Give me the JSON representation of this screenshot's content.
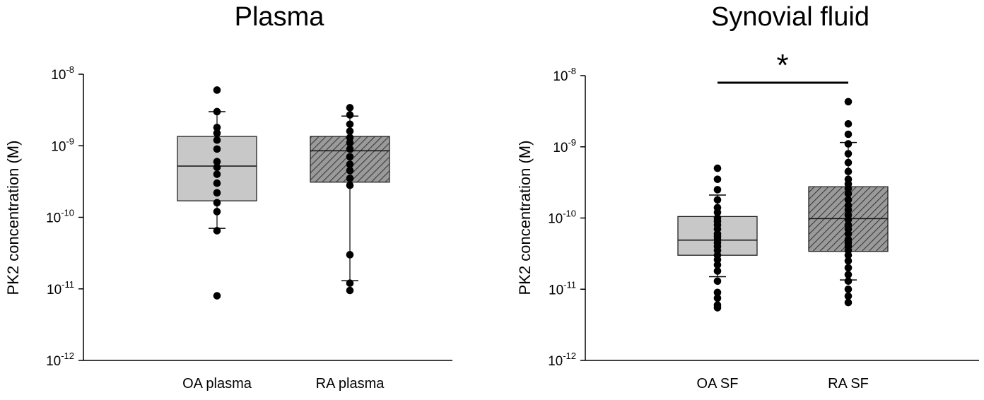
{
  "chart_data": [
    {
      "type": "box",
      "title": "Plasma",
      "ylabel": "PK2 concentration (M)",
      "yscale": "log",
      "ylim": [
        1e-12,
        1e-08
      ],
      "yticks": [
        {
          "exp": "-8",
          "value": 1e-08
        },
        {
          "exp": "-9",
          "value": 1e-09
        },
        {
          "exp": "-10",
          "value": 1e-10
        },
        {
          "exp": "-11",
          "value": 1e-11
        },
        {
          "exp": "-12",
          "value": 1e-12
        }
      ],
      "categories": [
        "OA plasma",
        "RA plasma"
      ],
      "boxes": [
        {
          "name": "OA plasma",
          "fill": "#c8c8c8",
          "hatched": false,
          "whisker_low": 7e-11,
          "q1": 1.7e-10,
          "median": 5.2e-10,
          "q3": 1.35e-09,
          "whisker_high": 3e-09,
          "points": [
            6e-09,
            3e-09,
            1.8e-09,
            1.5e-09,
            1.2e-09,
            9e-10,
            6e-10,
            5e-10,
            4e-10,
            3e-10,
            2.2e-10,
            1.6e-10,
            1.2e-10,
            6.5e-11,
            8e-12
          ]
        },
        {
          "name": "RA plasma",
          "fill": "#8c8c8c",
          "hatched": true,
          "whisker_low": 1.3e-11,
          "q1": 3.1e-10,
          "median": 8.5e-10,
          "q3": 1.35e-09,
          "whisker_high": 2.6e-09,
          "points": [
            3.4e-09,
            2.7e-09,
            2e-09,
            1.6e-09,
            1.3e-09,
            1.1e-09,
            9e-10,
            7e-10,
            5.5e-10,
            4.5e-10,
            3.5e-10,
            2.8e-10,
            3e-11,
            1.2e-11,
            9.5e-12
          ]
        }
      ]
    },
    {
      "type": "box",
      "title": "Synovial fluid",
      "ylabel": "PK2 concentration (M)",
      "yscale": "log",
      "ylim": [
        1e-12,
        1e-08
      ],
      "yticks": [
        {
          "exp": "-8",
          "value": 1e-08
        },
        {
          "exp": "-9",
          "value": 1e-09
        },
        {
          "exp": "-10",
          "value": 1e-10
        },
        {
          "exp": "-11",
          "value": 1e-11
        },
        {
          "exp": "-12",
          "value": 1e-12
        }
      ],
      "categories": [
        "OA SF",
        "RA SF"
      ],
      "significance": {
        "label": "*",
        "between": [
          "OA SF",
          "RA SF"
        ]
      },
      "boxes": [
        {
          "name": "OA SF",
          "fill": "#c8c8c8",
          "hatched": false,
          "whisker_low": 1.5e-11,
          "q1": 3e-11,
          "median": 4.9e-11,
          "q3": 1.05e-10,
          "whisker_high": 2.1e-10,
          "points": [
            5e-10,
            3.5e-10,
            2.5e-10,
            1.8e-10,
            1.4e-10,
            1.2e-10,
            1e-10,
            9e-11,
            8e-11,
            7e-11,
            6e-11,
            5.5e-11,
            5e-11,
            4.5e-11,
            4e-11,
            3.5e-11,
            3e-11,
            2.6e-11,
            2.2e-11,
            1.8e-11,
            1.3e-11,
            9e-12,
            7.5e-12,
            6e-12,
            5.5e-12
          ]
        },
        {
          "name": "RA SF",
          "fill": "#8c8c8c",
          "hatched": true,
          "whisker_low": 1.35e-11,
          "q1": 3.4e-11,
          "median": 9.8e-11,
          "q3": 2.75e-10,
          "whisker_high": 1.15e-09,
          "points": [
            4.3e-09,
            2.1e-09,
            1.5e-09,
            1.1e-09,
            8e-10,
            6e-10,
            4.5e-10,
            3.5e-10,
            3e-10,
            2.6e-10,
            2.2e-10,
            1.8e-10,
            1.5e-10,
            1.3e-10,
            1.1e-10,
            9.5e-11,
            8e-11,
            7e-11,
            6e-11,
            5e-11,
            4.5e-11,
            4e-11,
            3.5e-11,
            3e-11,
            2.5e-11,
            2e-11,
            1.6e-11,
            1.3e-11,
            1e-11,
            8e-12,
            6.5e-12
          ]
        }
      ]
    }
  ]
}
